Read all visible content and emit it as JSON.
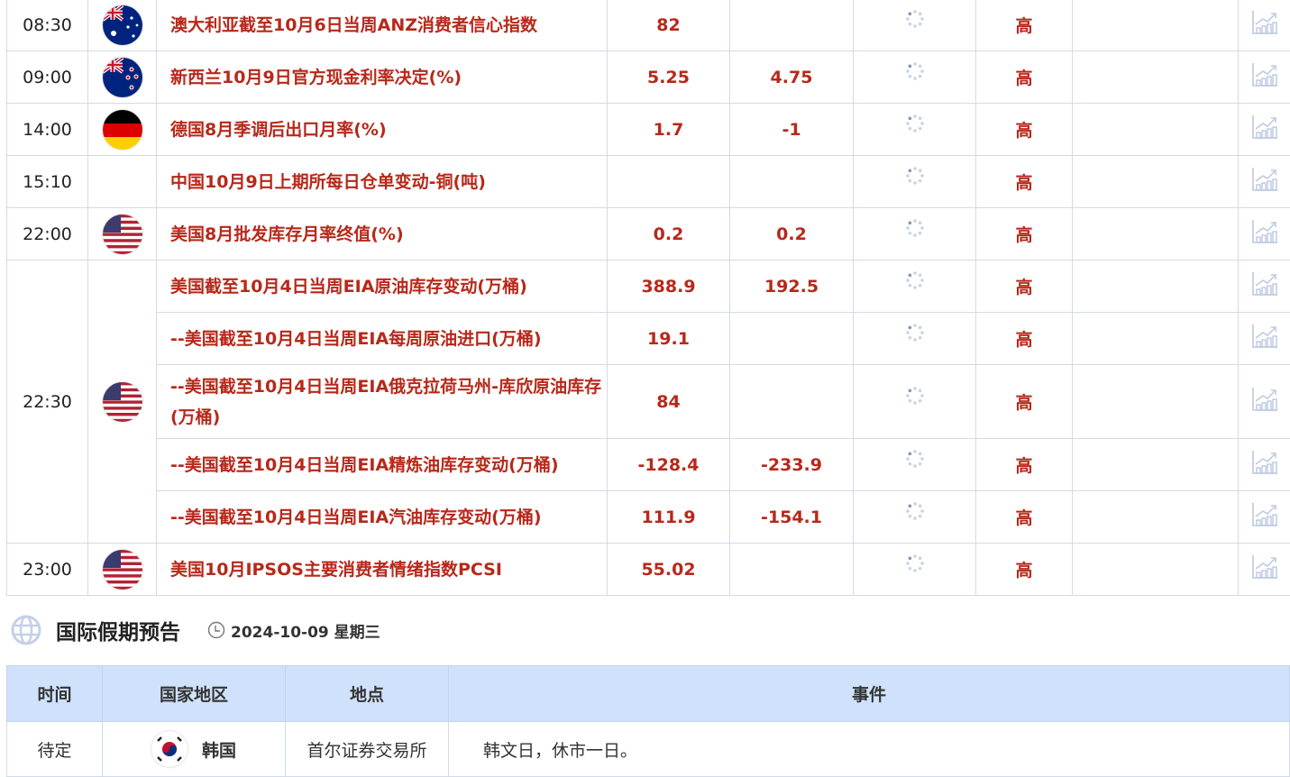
{
  "events": [
    {
      "time": "08:30",
      "flag": "australia",
      "name": "澳大利亚截至10月6日当周ANZ消费者信心指数",
      "prev": "82",
      "forecast": "",
      "importance": "高"
    },
    {
      "time": "09:00",
      "flag": "new-zealand",
      "name": "新西兰10月9日官方现金利率决定(%)",
      "prev": "5.25",
      "forecast": "4.75",
      "importance": "高"
    },
    {
      "time": "14:00",
      "flag": "germany",
      "name": "德国8月季调后出口月率(%)",
      "prev": "1.7",
      "forecast": "-1",
      "importance": "高"
    },
    {
      "time": "15:10",
      "flag": "",
      "name": "中国10月9日上期所每日仓单变动-铜(吨)",
      "prev": "",
      "forecast": "",
      "importance": "高"
    },
    {
      "time": "22:00",
      "flag": "usa",
      "name": "美国8月批发库存月率终值(%)",
      "prev": "0.2",
      "forecast": "0.2",
      "importance": "高"
    },
    {
      "time": "22:30",
      "flag": "usa",
      "name": "美国截至10月4日当周EIA原油库存变动(万桶)",
      "prev": "388.9",
      "forecast": "192.5",
      "importance": "高"
    },
    {
      "time": "",
      "flag": "",
      "name": "--美国截至10月4日当周EIA每周原油进口(万桶)",
      "prev": "19.1",
      "forecast": "",
      "importance": "高"
    },
    {
      "time": "",
      "flag": "",
      "name": "--美国截至10月4日当周EIA俄克拉荷马州-库欣原油库存(万桶)",
      "prev": "84",
      "forecast": "",
      "importance": "高"
    },
    {
      "time": "",
      "flag": "",
      "name": "--美国截至10月4日当周EIA精炼油库存变动(万桶)",
      "prev": "-128.4",
      "forecast": "-233.9",
      "importance": "高"
    },
    {
      "time": "",
      "flag": "",
      "name": "--美国截至10月4日当周EIA汽油库存变动(万桶)",
      "prev": "111.9",
      "forecast": "-154.1",
      "importance": "高"
    },
    {
      "time": "23:00",
      "flag": "usa",
      "name": "美国10月IPSOS主要消费者情绪指数PCSI",
      "prev": "55.02",
      "forecast": "",
      "importance": "高"
    }
  ],
  "holiday": {
    "title": "国际假期预告",
    "date": "2024-10-09 星期三",
    "headers": [
      "时间",
      "国家地区",
      "地点",
      "事件"
    ],
    "rows": [
      {
        "time": "待定",
        "country": "韩国",
        "place": "首尔证券交易所",
        "event": "韩文日，休市一日。"
      }
    ]
  },
  "colors": {
    "accent": "#b8281a",
    "header_bg": "#d0e2fb"
  }
}
